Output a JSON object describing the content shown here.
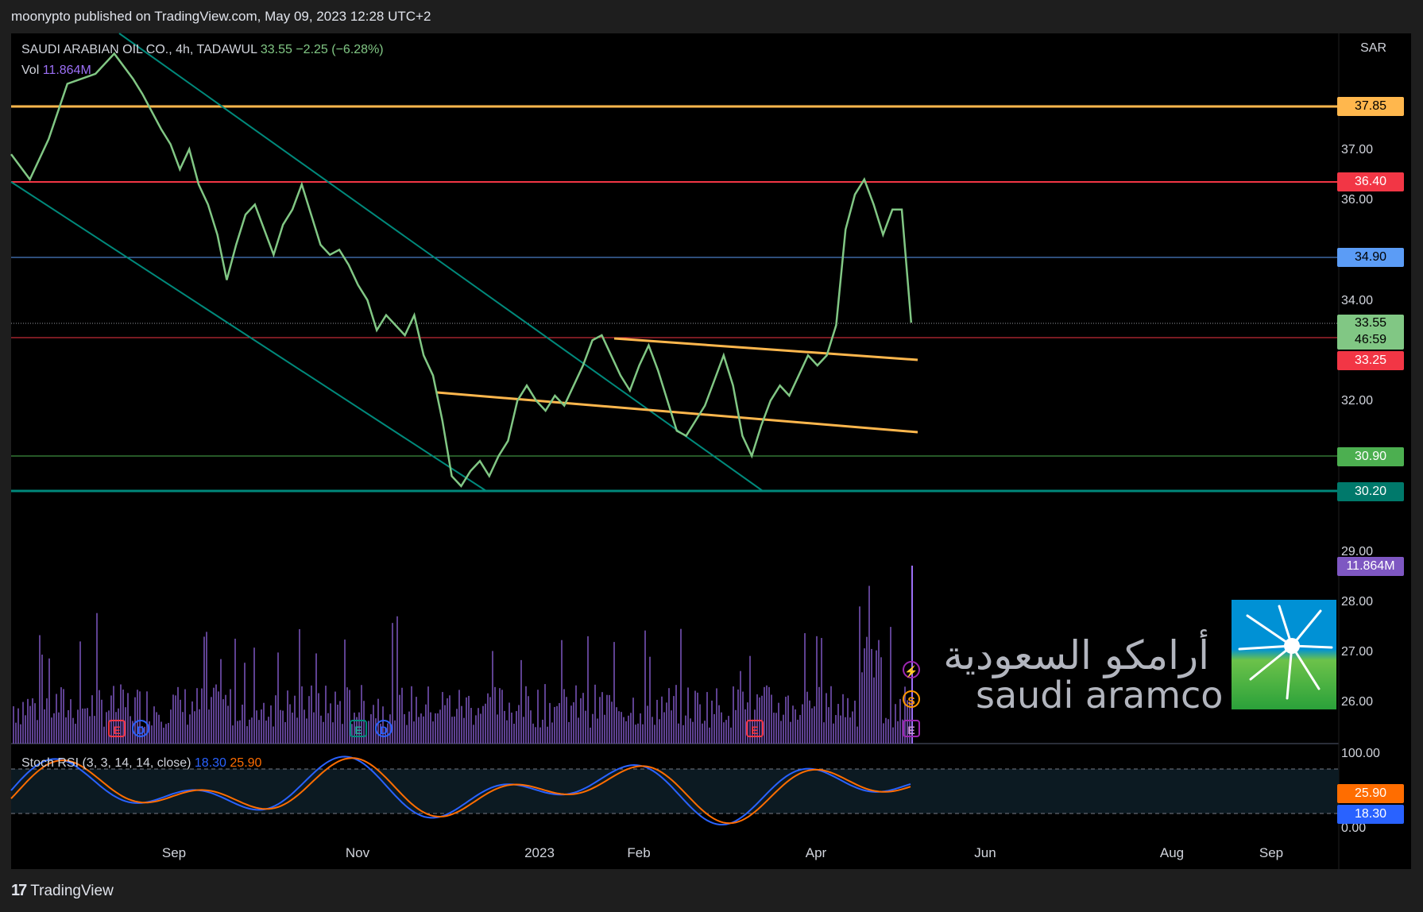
{
  "header": {
    "published_text": "moonypto published on TradingView.com, May 09, 2023 12:28 UTC+2"
  },
  "legend": {
    "symbol": "SAUDI ARABIAN OIL CO., 4h, TADAWUL",
    "price": "33.55",
    "change": "−2.25 (−6.28%)",
    "vol_label": "Vol",
    "vol_value": "11.864M"
  },
  "stoch": {
    "label": "Stoch RSI (3, 3, 14, 14, close)",
    "k": "18.30",
    "d": "25.90"
  },
  "currency": "SAR",
  "footer": {
    "brand": "TradingView"
  },
  "logo": {
    "arabic": "أرامكو السعودية",
    "english": "saudi aramco"
  },
  "colors": {
    "price_line": "#81c784",
    "resistance": "#f23645",
    "orange": "#ffb74d",
    "teal": "#00897b",
    "blue": "#5b9cf6",
    "volume": "#9c6ff6",
    "stoch_k": "#2962ff",
    "stoch_d": "#ff6d00"
  },
  "chart_data": {
    "type": "line",
    "title": "SAUDI ARABIAN OIL CO., 4h, TADAWUL",
    "x_ticks": [
      "Sep",
      "Nov",
      "2023",
      "Feb",
      "Apr",
      "Jun",
      "Aug",
      "Sep"
    ],
    "y_ticks": [
      "37.00",
      "36.00",
      "34.00",
      "32.00",
      "29.00",
      "28.00",
      "27.00",
      "26.00"
    ],
    "ylim": [
      25.6,
      38.6
    ],
    "price_labels": [
      {
        "value": 37.85,
        "text": "37.85",
        "kind": "orange"
      },
      {
        "value": 36.4,
        "text": "36.40",
        "kind": "red"
      },
      {
        "value": 34.9,
        "text": "34.90",
        "kind": "blue"
      },
      {
        "value": 33.55,
        "text": "33.55",
        "kind": "current"
      },
      {
        "value": 33.25,
        "text": "33.25",
        "kind": "red"
      },
      {
        "value": 30.9,
        "text": "30.90",
        "kind": "green"
      },
      {
        "value": 30.2,
        "text": "30.20",
        "kind": "teal"
      }
    ],
    "countdown": "46:59",
    "volume_label": "11.864M",
    "series": [
      {
        "name": "SAUDI ARABIAN OIL CO.",
        "values": [
          [
            0,
            36.9
          ],
          [
            2,
            36.4
          ],
          [
            4,
            37.2
          ],
          [
            6,
            38.3
          ],
          [
            9,
            38.5
          ],
          [
            11,
            38.9
          ],
          [
            13,
            38.4
          ],
          [
            14,
            38.1
          ],
          [
            16,
            37.4
          ],
          [
            17,
            37.1
          ],
          [
            18,
            36.6
          ],
          [
            19,
            37.0
          ],
          [
            20,
            36.3
          ],
          [
            21,
            35.9
          ],
          [
            22,
            35.3
          ],
          [
            23,
            34.4
          ],
          [
            24,
            35.1
          ],
          [
            25,
            35.7
          ],
          [
            26,
            35.9
          ],
          [
            27,
            35.4
          ],
          [
            28,
            34.9
          ],
          [
            29,
            35.5
          ],
          [
            30,
            35.8
          ],
          [
            31,
            36.3
          ],
          [
            32,
            35.7
          ],
          [
            33,
            35.1
          ],
          [
            34,
            34.9
          ],
          [
            35,
            35.0
          ],
          [
            36,
            34.7
          ],
          [
            37,
            34.3
          ],
          [
            38,
            34.0
          ],
          [
            39,
            33.4
          ],
          [
            40,
            33.7
          ],
          [
            41,
            33.5
          ],
          [
            42,
            33.3
          ],
          [
            43,
            33.7
          ],
          [
            44,
            32.9
          ],
          [
            45,
            32.5
          ],
          [
            46,
            31.6
          ],
          [
            47,
            30.5
          ],
          [
            48,
            30.3
          ],
          [
            49,
            30.6
          ],
          [
            50,
            30.8
          ],
          [
            51,
            30.5
          ],
          [
            52,
            30.9
          ],
          [
            53,
            31.2
          ],
          [
            54,
            32.0
          ],
          [
            55,
            32.3
          ],
          [
            56,
            32.0
          ],
          [
            57,
            31.8
          ],
          [
            58,
            32.1
          ],
          [
            59,
            31.9
          ],
          [
            60,
            32.3
          ],
          [
            61,
            32.7
          ],
          [
            62,
            33.2
          ],
          [
            63,
            33.3
          ],
          [
            64,
            32.9
          ],
          [
            65,
            32.5
          ],
          [
            66,
            32.2
          ],
          [
            67,
            32.7
          ],
          [
            68,
            33.1
          ],
          [
            69,
            32.6
          ],
          [
            70,
            32.0
          ],
          [
            71,
            31.4
          ],
          [
            72,
            31.3
          ],
          [
            73,
            31.6
          ],
          [
            74,
            31.9
          ],
          [
            75,
            32.4
          ],
          [
            76,
            32.9
          ],
          [
            77,
            32.3
          ],
          [
            78,
            31.3
          ],
          [
            79,
            30.9
          ],
          [
            80,
            31.5
          ],
          [
            81,
            32.0
          ],
          [
            82,
            32.3
          ],
          [
            83,
            32.1
          ],
          [
            84,
            32.5
          ],
          [
            85,
            32.9
          ],
          [
            86,
            32.7
          ],
          [
            87,
            32.9
          ],
          [
            88,
            33.5
          ],
          [
            89,
            35.4
          ],
          [
            90,
            36.1
          ],
          [
            91,
            36.4
          ],
          [
            92,
            35.9
          ],
          [
            93,
            35.3
          ],
          [
            94,
            35.8
          ],
          [
            95,
            35.8
          ],
          [
            96,
            33.55
          ]
        ]
      }
    ],
    "stoch_series": [
      {
        "name": "K",
        "value": 18.3
      },
      {
        "name": "D",
        "value": 25.9
      }
    ]
  }
}
